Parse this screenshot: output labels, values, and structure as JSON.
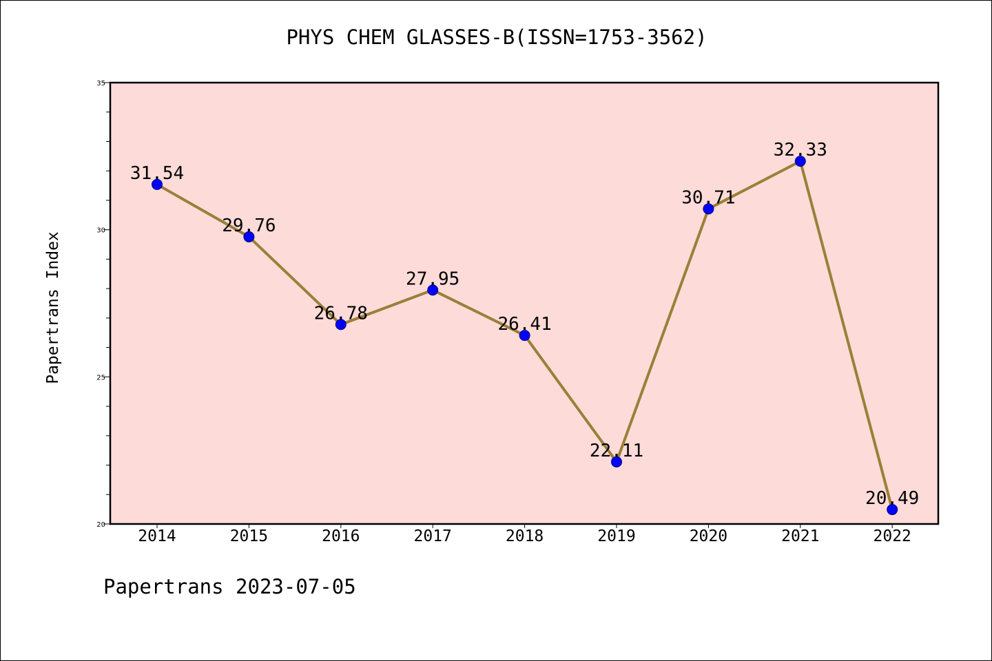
{
  "chart_data": {
    "type": "line",
    "title": "PHYS CHEM GLASSES-B(ISSN=1753-3562)",
    "ylabel": "Papertrans Index",
    "xlabel": "",
    "categories": [
      "2014",
      "2015",
      "2016",
      "2017",
      "2018",
      "2019",
      "2020",
      "2021",
      "2022"
    ],
    "values": [
      31.54,
      29.76,
      26.78,
      27.95,
      26.41,
      22.11,
      30.71,
      32.33,
      20.49
    ],
    "data_labels": [
      "31.54",
      "29.76",
      "26.78",
      "27.95",
      "26.41",
      "22.11",
      "30.71",
      "32.33",
      "20.49"
    ],
    "ylim": [
      20,
      35
    ],
    "yticks": [
      "20",
      "25",
      "30",
      "35"
    ],
    "grid": false,
    "colors": {
      "plot_background": "#fddbd9",
      "line": "#9a8038",
      "marker": "#0000ff",
      "axis": "#000000"
    }
  },
  "footer": "Papertrans 2023-07-05"
}
